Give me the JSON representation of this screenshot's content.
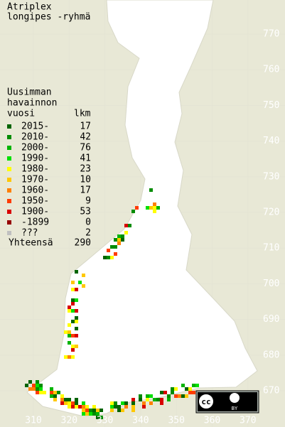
{
  "title": [
    "Atriplex",
    "longipes -ryhmä"
  ],
  "legend": {
    "header": [
      "Uusimman",
      "havainnon",
      "vuosi"
    ],
    "count_header": "lkm",
    "rows": [
      {
        "period": "2015-",
        "count": 17,
        "color": "#006400"
      },
      {
        "period": "2010-",
        "count": 42,
        "color": "#008c00"
      },
      {
        "period": "2000-",
        "count": 76,
        "color": "#00b400"
      },
      {
        "period": "1990-",
        "count": 41,
        "color": "#00e000"
      },
      {
        "period": "1980-",
        "count": 23,
        "color": "#ffff00"
      },
      {
        "period": "1970-",
        "count": 10,
        "color": "#ffc800"
      },
      {
        "period": "1960-",
        "count": 17,
        "color": "#ff8000"
      },
      {
        "period": "1950-",
        "count": 9,
        "color": "#ff3c00"
      },
      {
        "period": "1900-",
        "count": 53,
        "color": "#d80000"
      },
      {
        "period": "-1899",
        "count": 0,
        "color": "#960000"
      },
      {
        "period": "???",
        "count": 2,
        "color": "#c0c0c0"
      }
    ],
    "total_label": "Yhteensä",
    "total": 290
  },
  "grid": {
    "northing": [
      770,
      760,
      750,
      740,
      730,
      720,
      710,
      700,
      690,
      680,
      670
    ],
    "easting": [
      310,
      320,
      330,
      340,
      350,
      360,
      370
    ]
  },
  "license": {
    "cc": "cc",
    "by": "BY"
  }
}
